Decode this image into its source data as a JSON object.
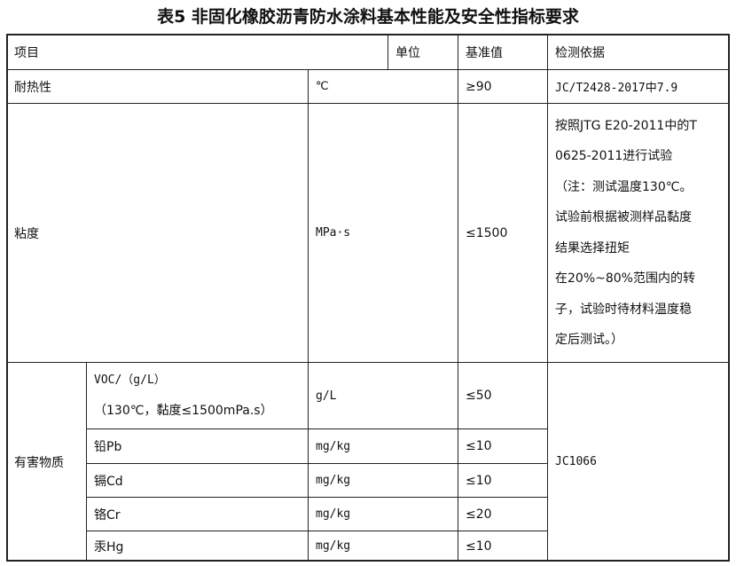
{
  "title": "表5 非固化橡胶沥青防水涂料基本性能及安全性指标要求",
  "header": {
    "item": "项目",
    "unit": "单位",
    "value": "基准值",
    "basis": "检测依据"
  },
  "heat": {
    "item": "耐热性",
    "unit": "℃",
    "value": "≥90",
    "basis": "JC/T2428-2017中7.9"
  },
  "viscosity": {
    "item": "粘度",
    "unit": "MPa·s",
    "value": "≤1500",
    "basis_lines": [
      "按照JTG E20-2011中的T",
      "0625-2011进行试验",
      "（注：测试温度130℃。",
      "试验前根据被测样品黏度",
      "结果选择扭矩",
      "在20%~80%范围内的转",
      "子，试验时待材料温度稳",
      "定后测试。）"
    ]
  },
  "hazard": {
    "group": "有害物质",
    "basis": "JC1066",
    "rows": [
      {
        "item_lines": [
          "VOC/（g/L）",
          "（130℃，黏度≤1500mPa.s）"
        ],
        "unit": "g/L",
        "value": "≤50"
      },
      {
        "item": "铅Pb",
        "unit": "mg/kg",
        "value": "≤10"
      },
      {
        "item": "镉Cd",
        "unit": "mg/kg",
        "value": "≤10"
      },
      {
        "item": "铬Cr",
        "unit": "mg/kg",
        "value": "≤20"
      },
      {
        "item": "汞Hg",
        "unit": "mg/kg",
        "value": "≤10"
      }
    ]
  }
}
